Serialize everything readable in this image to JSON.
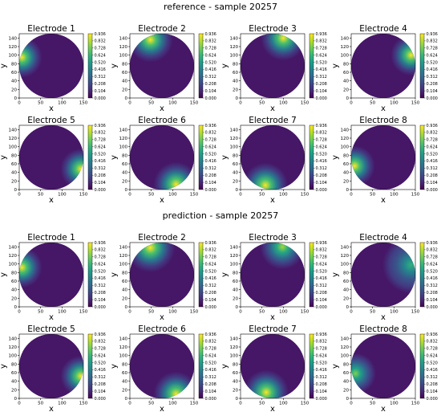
{
  "figure": {
    "groups": [
      {
        "title": "reference - sample 20257"
      },
      {
        "title": "prediction - sample 20257"
      }
    ]
  },
  "colorbar": {
    "ticks": [
      "0.936",
      "0.832",
      "0.728",
      "0.624",
      "0.520",
      "0.416",
      "0.312",
      "0.208",
      "0.104",
      "0.000"
    ]
  },
  "chart_data": [
    {
      "type": "heatmap",
      "group": "reference",
      "title": "Electrode 1",
      "xlabel": "x",
      "ylabel": "y",
      "xlim": [
        0,
        150
      ],
      "ylim": [
        0,
        150
      ],
      "xticks": [
        0,
        50,
        100,
        150
      ],
      "yticks": [
        0,
        20,
        40,
        60,
        80,
        100,
        120,
        140
      ],
      "colorbar_range": [
        0.0,
        0.936
      ],
      "colormap": "viridis",
      "domain": "circle",
      "hotspot": {
        "x": 6,
        "y": 95,
        "peak": 0.936,
        "spread": 20
      }
    },
    {
      "type": "heatmap",
      "group": "reference",
      "title": "Electrode 2",
      "xlabel": "x",
      "ylabel": "y",
      "xlim": [
        0,
        150
      ],
      "ylim": [
        0,
        150
      ],
      "xticks": [
        0,
        50,
        100,
        150
      ],
      "yticks": [
        0,
        20,
        40,
        60,
        80,
        100,
        120,
        140
      ],
      "colorbar_range": [
        0.0,
        0.936
      ],
      "colormap": "viridis",
      "domain": "circle",
      "hotspot": {
        "x": 48,
        "y": 136,
        "peak": 0.936,
        "spread": 22
      }
    },
    {
      "type": "heatmap",
      "group": "reference",
      "title": "Electrode 3",
      "xlabel": "x",
      "ylabel": "y",
      "xlim": [
        0,
        150
      ],
      "ylim": [
        0,
        150
      ],
      "xticks": [
        0,
        50,
        100,
        150
      ],
      "yticks": [
        0,
        20,
        40,
        60,
        80,
        100,
        120,
        140
      ],
      "colorbar_range": [
        0.0,
        0.936
      ],
      "colormap": "viridis",
      "domain": "circle",
      "hotspot": {
        "x": 100,
        "y": 140,
        "peak": 0.936,
        "spread": 22
      }
    },
    {
      "type": "heatmap",
      "group": "reference",
      "title": "Electrode 4",
      "xlabel": "x",
      "ylabel": "y",
      "xlim": [
        0,
        150
      ],
      "ylim": [
        0,
        150
      ],
      "xticks": [
        0,
        50,
        100,
        150
      ],
      "yticks": [
        0,
        20,
        40,
        60,
        80,
        100,
        120,
        140
      ],
      "colorbar_range": [
        0.0,
        0.936
      ],
      "colormap": "viridis",
      "domain": "circle",
      "hotspot": {
        "x": 140,
        "y": 100,
        "peak": 0.936,
        "spread": 20
      }
    },
    {
      "type": "heatmap",
      "group": "reference",
      "title": "Electrode 5",
      "xlabel": "x",
      "ylabel": "y",
      "xlim": [
        0,
        150
      ],
      "ylim": [
        0,
        150
      ],
      "xticks": [
        0,
        50,
        100,
        150
      ],
      "yticks": [
        0,
        20,
        40,
        60,
        80,
        100,
        120,
        140
      ],
      "colorbar_range": [
        0.0,
        0.936
      ],
      "colormap": "viridis",
      "domain": "circle",
      "hotspot": {
        "x": 144,
        "y": 48,
        "peak": 0.936,
        "spread": 20
      }
    },
    {
      "type": "heatmap",
      "group": "reference",
      "title": "Electrode 6",
      "xlabel": "x",
      "ylabel": "y",
      "xlim": [
        0,
        150
      ],
      "ylim": [
        0,
        150
      ],
      "xticks": [
        0,
        50,
        100,
        150
      ],
      "yticks": [
        0,
        20,
        40,
        60,
        80,
        100,
        120,
        140
      ],
      "colorbar_range": [
        0.0,
        0.936
      ],
      "colormap": "viridis",
      "domain": "circle",
      "hotspot": {
        "x": 108,
        "y": 12,
        "peak": 0.936,
        "spread": 22
      }
    },
    {
      "type": "heatmap",
      "group": "reference",
      "title": "Electrode 7",
      "xlabel": "x",
      "ylabel": "y",
      "xlim": [
        0,
        150
      ],
      "ylim": [
        0,
        150
      ],
      "xticks": [
        0,
        50,
        100,
        150
      ],
      "yticks": [
        0,
        20,
        40,
        60,
        80,
        100,
        120,
        140
      ],
      "colorbar_range": [
        0.0,
        0.936
      ],
      "colormap": "viridis",
      "domain": "circle",
      "hotspot": {
        "x": 58,
        "y": 10,
        "peak": 0.936,
        "spread": 22
      }
    },
    {
      "type": "heatmap",
      "group": "reference",
      "title": "Electrode 8",
      "xlabel": "x",
      "ylabel": "y",
      "xlim": [
        0,
        150
      ],
      "ylim": [
        0,
        150
      ],
      "xticks": [
        0,
        50,
        100,
        150
      ],
      "yticks": [
        0,
        20,
        40,
        60,
        80,
        100,
        120,
        140
      ],
      "colorbar_range": [
        0.0,
        0.936
      ],
      "colormap": "viridis",
      "domain": "circle",
      "hotspot": {
        "x": 8,
        "y": 55,
        "peak": 0.936,
        "spread": 20
      }
    },
    {
      "type": "heatmap",
      "group": "prediction",
      "title": "Electrode 1",
      "xlabel": "x",
      "ylabel": "y",
      "xlim": [
        0,
        150
      ],
      "ylim": [
        0,
        150
      ],
      "xticks": [
        0,
        50,
        100,
        150
      ],
      "yticks": [
        0,
        20,
        40,
        60,
        80,
        100,
        120,
        140
      ],
      "colorbar_range": [
        0.0,
        0.936
      ],
      "colormap": "viridis",
      "domain": "circle",
      "hotspot": {
        "x": 6,
        "y": 92,
        "peak": 0.936,
        "spread": 20
      }
    },
    {
      "type": "heatmap",
      "group": "prediction",
      "title": "Electrode 2",
      "xlabel": "x",
      "ylabel": "y",
      "xlim": [
        0,
        150
      ],
      "ylim": [
        0,
        150
      ],
      "xticks": [
        0,
        50,
        100,
        150
      ],
      "yticks": [
        0,
        20,
        40,
        60,
        80,
        100,
        120,
        140
      ],
      "colorbar_range": [
        0.0,
        0.936
      ],
      "colormap": "viridis",
      "domain": "circle",
      "hotspot": {
        "x": 48,
        "y": 138,
        "peak": 0.936,
        "spread": 24
      }
    },
    {
      "type": "heatmap",
      "group": "prediction",
      "title": "Electrode 3",
      "xlabel": "x",
      "ylabel": "y",
      "xlim": [
        0,
        150
      ],
      "ylim": [
        0,
        150
      ],
      "xticks": [
        0,
        50,
        100,
        150
      ],
      "yticks": [
        0,
        20,
        40,
        60,
        80,
        100,
        120,
        140
      ],
      "colorbar_range": [
        0.0,
        0.936
      ],
      "colormap": "viridis",
      "domain": "circle",
      "hotspot": {
        "x": 98,
        "y": 140,
        "peak": 0.8,
        "spread": 22
      }
    },
    {
      "type": "heatmap",
      "group": "prediction",
      "title": "Electrode 4",
      "xlabel": "x",
      "ylabel": "y",
      "xlim": [
        0,
        150
      ],
      "ylim": [
        0,
        150
      ],
      "xticks": [
        0,
        50,
        100,
        150
      ],
      "yticks": [
        0,
        20,
        40,
        60,
        80,
        100,
        120,
        140
      ],
      "colorbar_range": [
        0.0,
        0.936
      ],
      "colormap": "viridis",
      "domain": "circle",
      "hotspot": {
        "x": 140,
        "y": 98,
        "peak": 0.6,
        "spread": 28
      }
    },
    {
      "type": "heatmap",
      "group": "prediction",
      "title": "Electrode 5",
      "xlabel": "x",
      "ylabel": "y",
      "xlim": [
        0,
        150
      ],
      "ylim": [
        0,
        150
      ],
      "xticks": [
        0,
        50,
        100,
        150
      ],
      "yticks": [
        0,
        20,
        40,
        60,
        80,
        100,
        120,
        140
      ],
      "colorbar_range": [
        0.0,
        0.936
      ],
      "colormap": "viridis",
      "domain": "circle",
      "hotspot": {
        "x": 144,
        "y": 52,
        "peak": 0.936,
        "spread": 20
      }
    },
    {
      "type": "heatmap",
      "group": "prediction",
      "title": "Electrode 6",
      "xlabel": "x",
      "ylabel": "y",
      "xlim": [
        0,
        150
      ],
      "ylim": [
        0,
        150
      ],
      "xticks": [
        0,
        50,
        100,
        150
      ],
      "yticks": [
        0,
        20,
        40,
        60,
        80,
        100,
        120,
        140
      ],
      "colorbar_range": [
        0.0,
        0.936
      ],
      "colormap": "viridis",
      "domain": "circle",
      "hotspot": {
        "x": 108,
        "y": 10,
        "peak": 0.936,
        "spread": 22
      }
    },
    {
      "type": "heatmap",
      "group": "prediction",
      "title": "Electrode 7",
      "xlabel": "x",
      "ylabel": "y",
      "xlim": [
        0,
        150
      ],
      "ylim": [
        0,
        150
      ],
      "xticks": [
        0,
        50,
        100,
        150
      ],
      "yticks": [
        0,
        20,
        40,
        60,
        80,
        100,
        120,
        140
      ],
      "colorbar_range": [
        0.0,
        0.936
      ],
      "colormap": "viridis",
      "domain": "circle",
      "hotspot": {
        "x": 60,
        "y": 14,
        "peak": 0.936,
        "spread": 22
      }
    },
    {
      "type": "heatmap",
      "group": "prediction",
      "title": "Electrode 8",
      "xlabel": "x",
      "ylabel": "y",
      "xlim": [
        0,
        150
      ],
      "ylim": [
        0,
        150
      ],
      "xticks": [
        0,
        50,
        100,
        150
      ],
      "yticks": [
        0,
        20,
        40,
        60,
        80,
        100,
        120,
        140
      ],
      "colorbar_range": [
        0.0,
        0.936
      ],
      "colormap": "viridis",
      "domain": "circle",
      "hotspot": {
        "x": 10,
        "y": 58,
        "peak": 0.75,
        "spread": 20
      }
    }
  ]
}
